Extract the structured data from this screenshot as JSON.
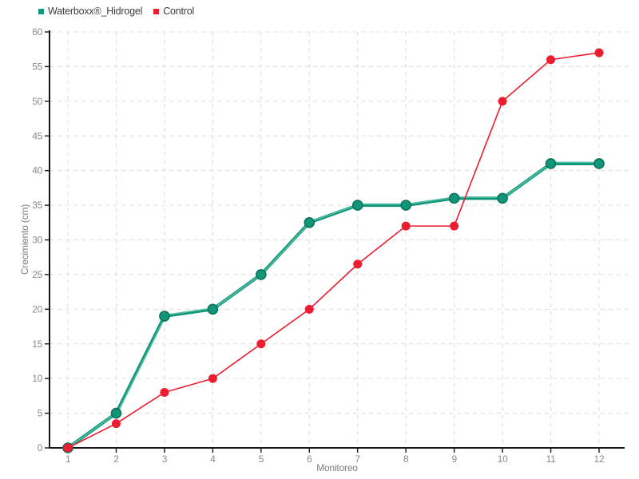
{
  "chart_data": {
    "type": "line",
    "x": [
      1,
      2,
      3,
      4,
      5,
      6,
      7,
      8,
      9,
      10,
      11,
      12
    ],
    "series": [
      {
        "name": "Waterboxx®_Hidrogel",
        "color": "#12967A",
        "color_light": "#4FBFA3",
        "marker_border": "#0C7259",
        "values": [
          0,
          5,
          19,
          20,
          25,
          32.5,
          35,
          35,
          36,
          36,
          41,
          41
        ]
      },
      {
        "name": "Control",
        "color": "#ED1C2E",
        "values": [
          0,
          3.5,
          8,
          10,
          15,
          20,
          26.5,
          32,
          32,
          50,
          56,
          57
        ]
      }
    ],
    "xlabel": "Monitoreo",
    "ylabel": "Crecimiento (cm)",
    "ylim": [
      0,
      60
    ],
    "ytick_step": 5,
    "yticks": [
      0,
      5,
      10,
      15,
      20,
      25,
      30,
      35,
      40,
      45,
      50,
      55,
      60
    ],
    "grid": true,
    "grid_style": "dashed",
    "legend_position": "top-left",
    "colors": {
      "background": "#FFFFFF",
      "grid": "#DCDCDC",
      "axis": "#161616",
      "tick_text": "#8A8A8A",
      "axis_label_text": "#7D7D7D",
      "legend_text": "#3C3C3C"
    }
  }
}
